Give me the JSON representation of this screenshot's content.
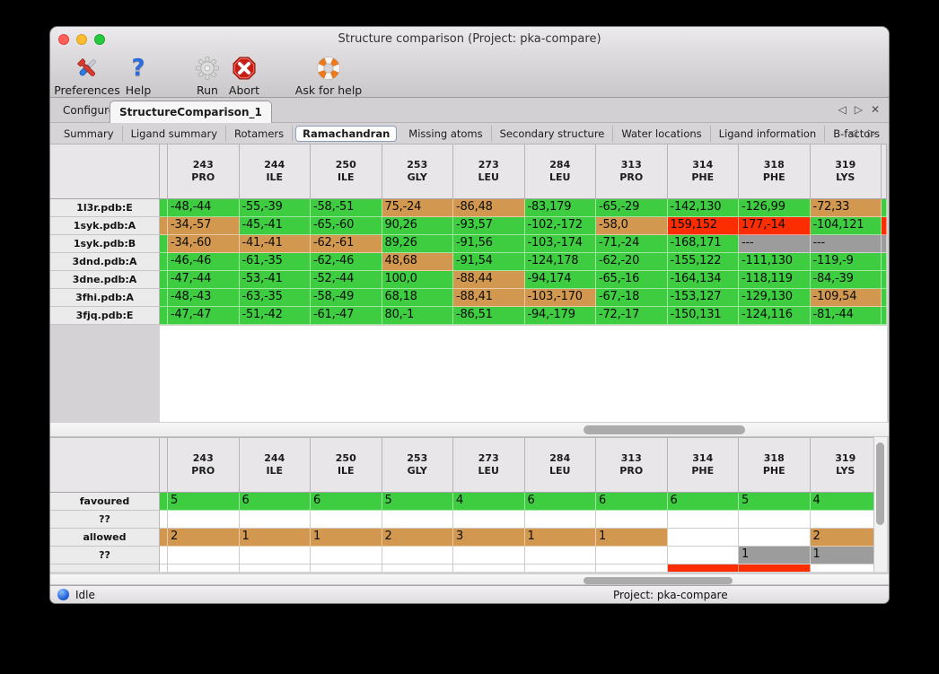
{
  "window": {
    "title": "Structure comparison (Project: pka-compare)"
  },
  "toolbar": {
    "buttons": [
      {
        "label": "Preferences",
        "icon": "tools-icon"
      },
      {
        "label": "Help",
        "icon": "question-icon"
      },
      {
        "label": "Run",
        "icon": "gear-icon"
      },
      {
        "label": "Abort",
        "icon": "abort-icon"
      },
      {
        "label": "Ask for help",
        "icon": "lifebuoy-icon"
      }
    ]
  },
  "tabs": {
    "main": [
      {
        "label": "Configure",
        "selected": false
      },
      {
        "label": "StructureComparison_1",
        "selected": true
      }
    ],
    "sub": [
      {
        "label": "Summary",
        "selected": false
      },
      {
        "label": "Ligand summary",
        "selected": false
      },
      {
        "label": "Rotamers",
        "selected": false
      },
      {
        "label": "Ramachandran",
        "selected": true
      },
      {
        "label": "Missing atoms",
        "selected": false
      },
      {
        "label": "Secondary structure",
        "selected": false
      },
      {
        "label": "Water locations",
        "selected": false
      },
      {
        "label": "Ligand information",
        "selected": false
      },
      {
        "label": "B-factors",
        "selected": false
      }
    ]
  },
  "legend_colors": {
    "favoured": "#3ecc41",
    "allowed": "#d2984f",
    "outlier": "#fc2d01",
    "missing": "#9c9c9c"
  },
  "columns": [
    {
      "number": "243",
      "residue": "PRO"
    },
    {
      "number": "244",
      "residue": "ILE"
    },
    {
      "number": "250",
      "residue": "ILE"
    },
    {
      "number": "253",
      "residue": "GLY"
    },
    {
      "number": "273",
      "residue": "LEU"
    },
    {
      "number": "284",
      "residue": "LEU"
    },
    {
      "number": "313",
      "residue": "PRO"
    },
    {
      "number": "314",
      "residue": "PHE"
    },
    {
      "number": "318",
      "residue": "PHE"
    },
    {
      "number": "319",
      "residue": "LYS"
    }
  ],
  "residue_table": {
    "rows": [
      {
        "label": "1l3r.pdb:E",
        "strip": "favoured",
        "edge": "favoured",
        "cells": [
          {
            "text": "-48,-44",
            "status": "favoured"
          },
          {
            "text": "-55,-39",
            "status": "favoured"
          },
          {
            "text": "-58,-51",
            "status": "favoured"
          },
          {
            "text": "75,-24",
            "status": "allowed"
          },
          {
            "text": "-86,48",
            "status": "allowed"
          },
          {
            "text": "-83,179",
            "status": "favoured"
          },
          {
            "text": "-65,-29",
            "status": "favoured"
          },
          {
            "text": "-142,130",
            "status": "favoured"
          },
          {
            "text": "-126,99",
            "status": "favoured"
          },
          {
            "text": "-72,33",
            "status": "allowed"
          }
        ]
      },
      {
        "label": "1syk.pdb:A",
        "strip": "allowed",
        "edge": "outlier",
        "cells": [
          {
            "text": "-34,-57",
            "status": "allowed"
          },
          {
            "text": "-45,-41",
            "status": "favoured"
          },
          {
            "text": "-65,-60",
            "status": "favoured"
          },
          {
            "text": "90,26",
            "status": "favoured"
          },
          {
            "text": "-93,57",
            "status": "favoured"
          },
          {
            "text": "-102,-172",
            "status": "favoured"
          },
          {
            "text": "-58,0",
            "status": "allowed"
          },
          {
            "text": "159,152",
            "status": "outlier"
          },
          {
            "text": "177,-14",
            "status": "outlier"
          },
          {
            "text": "-104,121",
            "status": "favoured"
          }
        ]
      },
      {
        "label": "1syk.pdb:B",
        "strip": "favoured",
        "edge": "missing",
        "cells": [
          {
            "text": "-34,-60",
            "status": "allowed"
          },
          {
            "text": "-41,-41",
            "status": "allowed"
          },
          {
            "text": "-62,-61",
            "status": "allowed"
          },
          {
            "text": "89,26",
            "status": "favoured"
          },
          {
            "text": "-91,56",
            "status": "favoured"
          },
          {
            "text": "-103,-174",
            "status": "favoured"
          },
          {
            "text": "-71,-24",
            "status": "favoured"
          },
          {
            "text": "-168,171",
            "status": "favoured"
          },
          {
            "text": "---",
            "status": "missing"
          },
          {
            "text": "---",
            "status": "missing"
          }
        ]
      },
      {
        "label": "3dnd.pdb:A",
        "strip": "favoured",
        "edge": "favoured",
        "cells": [
          {
            "text": "-46,-46",
            "status": "favoured"
          },
          {
            "text": "-61,-35",
            "status": "favoured"
          },
          {
            "text": "-62,-46",
            "status": "favoured"
          },
          {
            "text": "48,68",
            "status": "allowed"
          },
          {
            "text": "-91,54",
            "status": "favoured"
          },
          {
            "text": "-124,178",
            "status": "favoured"
          },
          {
            "text": "-62,-20",
            "status": "favoured"
          },
          {
            "text": "-155,122",
            "status": "favoured"
          },
          {
            "text": "-111,130",
            "status": "favoured"
          },
          {
            "text": "-119,-9",
            "status": "favoured"
          }
        ]
      },
      {
        "label": "3dne.pdb:A",
        "strip": "favoured",
        "edge": "favoured",
        "cells": [
          {
            "text": "-47,-44",
            "status": "favoured"
          },
          {
            "text": "-53,-41",
            "status": "favoured"
          },
          {
            "text": "-52,-44",
            "status": "favoured"
          },
          {
            "text": "100,0",
            "status": "favoured"
          },
          {
            "text": "-88,44",
            "status": "allowed"
          },
          {
            "text": "-94,174",
            "status": "favoured"
          },
          {
            "text": "-65,-16",
            "status": "favoured"
          },
          {
            "text": "-164,134",
            "status": "favoured"
          },
          {
            "text": "-118,119",
            "status": "favoured"
          },
          {
            "text": "-84,-39",
            "status": "favoured"
          }
        ]
      },
      {
        "label": "3fhi.pdb:A",
        "strip": "favoured",
        "edge": "favoured",
        "cells": [
          {
            "text": "-48,-43",
            "status": "favoured"
          },
          {
            "text": "-63,-35",
            "status": "favoured"
          },
          {
            "text": "-58,-49",
            "status": "favoured"
          },
          {
            "text": "68,18",
            "status": "favoured"
          },
          {
            "text": "-88,41",
            "status": "allowed"
          },
          {
            "text": "-103,-170",
            "status": "allowed"
          },
          {
            "text": "-67,-18",
            "status": "favoured"
          },
          {
            "text": "-153,127",
            "status": "favoured"
          },
          {
            "text": "-129,130",
            "status": "favoured"
          },
          {
            "text": "-109,54",
            "status": "allowed"
          }
        ]
      },
      {
        "label": "3fjq.pdb:E",
        "strip": "favoured",
        "edge": "favoured",
        "cells": [
          {
            "text": "-47,-47",
            "status": "favoured"
          },
          {
            "text": "-51,-42",
            "status": "favoured"
          },
          {
            "text": "-61,-47",
            "status": "favoured"
          },
          {
            "text": "80,-1",
            "status": "favoured"
          },
          {
            "text": "-86,51",
            "status": "favoured"
          },
          {
            "text": "-94,-179",
            "status": "favoured"
          },
          {
            "text": "-72,-17",
            "status": "favoured"
          },
          {
            "text": "-150,131",
            "status": "favoured"
          },
          {
            "text": "-124,116",
            "status": "favoured"
          },
          {
            "text": "-81,-44",
            "status": "favoured"
          }
        ]
      }
    ]
  },
  "summary_table": {
    "rows": [
      {
        "label": "favoured",
        "strip": "favoured",
        "partial": false,
        "cells": [
          {
            "text": "5",
            "status": "favoured"
          },
          {
            "text": "6",
            "status": "favoured"
          },
          {
            "text": "6",
            "status": "favoured"
          },
          {
            "text": "5",
            "status": "favoured"
          },
          {
            "text": "4",
            "status": "favoured"
          },
          {
            "text": "6",
            "status": "favoured"
          },
          {
            "text": "6",
            "status": "favoured"
          },
          {
            "text": "6",
            "status": "favoured"
          },
          {
            "text": "5",
            "status": "favoured"
          },
          {
            "text": "4",
            "status": "favoured"
          }
        ]
      },
      {
        "label": "??",
        "strip": "none",
        "partial": false,
        "cells": [
          {
            "text": "",
            "status": "none"
          },
          {
            "text": "",
            "status": "none"
          },
          {
            "text": "",
            "status": "none"
          },
          {
            "text": "",
            "status": "none"
          },
          {
            "text": "",
            "status": "none"
          },
          {
            "text": "",
            "status": "none"
          },
          {
            "text": "",
            "status": "none"
          },
          {
            "text": "",
            "status": "none"
          },
          {
            "text": "",
            "status": "none"
          },
          {
            "text": "",
            "status": "none"
          }
        ]
      },
      {
        "label": "allowed",
        "strip": "allowed",
        "partial": false,
        "cells": [
          {
            "text": "2",
            "status": "allowed"
          },
          {
            "text": "1",
            "status": "allowed"
          },
          {
            "text": "1",
            "status": "allowed"
          },
          {
            "text": "2",
            "status": "allowed"
          },
          {
            "text": "3",
            "status": "allowed"
          },
          {
            "text": "1",
            "status": "allowed"
          },
          {
            "text": "1",
            "status": "allowed"
          },
          {
            "text": "",
            "status": "none"
          },
          {
            "text": "",
            "status": "none"
          },
          {
            "text": "2",
            "status": "allowed"
          }
        ]
      },
      {
        "label": "??",
        "strip": "none",
        "partial": false,
        "cells": [
          {
            "text": "",
            "status": "none"
          },
          {
            "text": "",
            "status": "none"
          },
          {
            "text": "",
            "status": "none"
          },
          {
            "text": "",
            "status": "none"
          },
          {
            "text": "",
            "status": "none"
          },
          {
            "text": "",
            "status": "none"
          },
          {
            "text": "",
            "status": "none"
          },
          {
            "text": "",
            "status": "none"
          },
          {
            "text": "1",
            "status": "missing"
          },
          {
            "text": "1",
            "status": "missing"
          }
        ]
      },
      {
        "label": "",
        "strip": "none",
        "partial": true,
        "cells": [
          {
            "text": "",
            "status": "none"
          },
          {
            "text": "",
            "status": "none"
          },
          {
            "text": "",
            "status": "none"
          },
          {
            "text": "",
            "status": "none"
          },
          {
            "text": "",
            "status": "none"
          },
          {
            "text": "",
            "status": "none"
          },
          {
            "text": "",
            "status": "none"
          },
          {
            "text": "",
            "status": "outlier"
          },
          {
            "text": "",
            "status": "outlier"
          },
          {
            "text": "",
            "status": "none"
          }
        ]
      }
    ]
  },
  "statusbar": {
    "status": "Idle",
    "project": "Project: pka-compare"
  }
}
